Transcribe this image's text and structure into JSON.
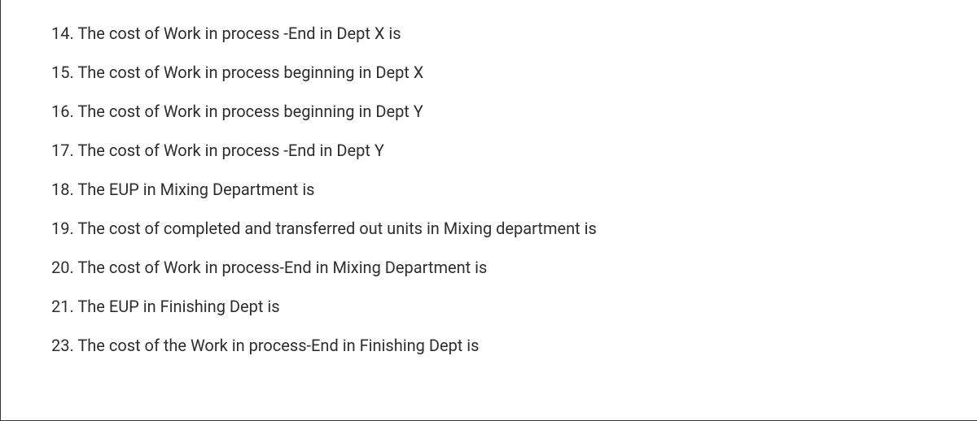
{
  "document": {
    "background_color": "#ffffff",
    "border_color": "#333333",
    "text_color": "#2e2e2e",
    "font_size": 20,
    "questions": [
      {
        "number": "14",
        "text": "The cost of Work in process -End in Dept X is"
      },
      {
        "number": "15",
        "text": "The cost of Work in process beginning in Dept X"
      },
      {
        "number": "16",
        "text": "The cost of Work in process beginning in Dept Y"
      },
      {
        "number": "17",
        "text": "The cost of Work in process -End in Dept Y"
      },
      {
        "number": "18",
        "text": "The EUP in Mixing Department is"
      },
      {
        "number": "19",
        "text": "The cost of completed and transferred out units in Mixing department is"
      },
      {
        "number": "20",
        "text": "The cost of Work in process-End in Mixing Department is"
      },
      {
        "number": "21",
        "text": "The EUP in Finishing Dept is"
      },
      {
        "number": "23",
        "text": "The cost of the Work in process-End in Finishing Dept is"
      }
    ]
  }
}
